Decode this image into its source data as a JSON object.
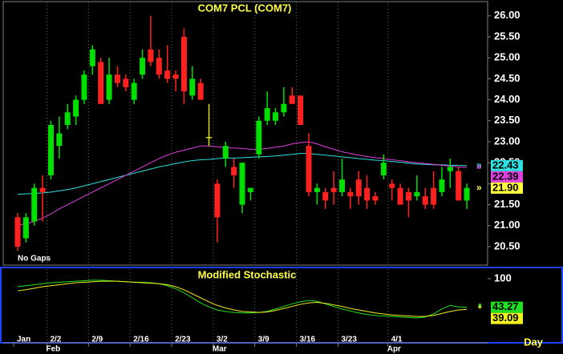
{
  "chart_data": [
    {
      "type": "candlestick",
      "title": "COM7 PCL (COM7)",
      "note": "No Gaps",
      "period": "Day",
      "xlim": [
        -1.35,
        56.5
      ],
      "xticks": [
        {
          "value": 0,
          "label": "Jan"
        },
        {
          "value": 4,
          "label": "2/2"
        },
        {
          "value": 9,
          "label": "2/9"
        },
        {
          "value": 14,
          "label": "2/16"
        },
        {
          "value": 19,
          "label": "2/23"
        },
        {
          "value": 24,
          "label": "3/2"
        },
        {
          "value": 29,
          "label": "3/9"
        },
        {
          "value": 34,
          "label": "3/16"
        },
        {
          "value": 39,
          "label": "3/23"
        },
        {
          "value": 45,
          "label": "4/1"
        }
      ],
      "month_ticks": [
        {
          "value": 4,
          "label": "Feb"
        },
        {
          "value": 24,
          "label": "Mar"
        },
        {
          "value": 45,
          "label": "Apr"
        }
      ],
      "ylim": [
        20.08,
        26.32
      ],
      "yticks": [
        {
          "value": 20.5,
          "label": "20.50"
        },
        {
          "value": 21,
          "label": "21.00"
        },
        {
          "value": 21.5,
          "label": "21.50"
        },
        {
          "value": 22,
          "label": "22.00"
        },
        {
          "value": 22.5,
          "label": "22.50"
        },
        {
          "value": 23,
          "label": "23.00"
        },
        {
          "value": 23.5,
          "label": "23.50"
        },
        {
          "value": 24,
          "label": "24.00"
        },
        {
          "value": 24.5,
          "label": "24.50"
        },
        {
          "value": 25,
          "label": "25.00"
        },
        {
          "value": 25.5,
          "label": "25.50"
        },
        {
          "value": 26,
          "label": "26.00"
        }
      ],
      "up_color": "#00e000",
      "down_color": "#ff2020",
      "doji_color": "#e0e000",
      "last_label_color": "#ffff40",
      "open": [
        21.2,
        20.7,
        21.1,
        21.9,
        22.2,
        22.9,
        23.4,
        23.6,
        24.0,
        24.8,
        24.9,
        24.0,
        24.6,
        24.5,
        24.0,
        24.6,
        25.2,
        25.0,
        24.7,
        24.6,
        25.5,
        24.1,
        24.4,
        23.1,
        22.0,
        22.6,
        22.4,
        21.5,
        21.8,
        22.7,
        23.5,
        23.5,
        23.7,
        24.1,
        24.1,
        22.9,
        21.8,
        21.8,
        21.9,
        21.8,
        21.8,
        22.1,
        21.9,
        21.7,
        22.2,
        22.0,
        21.9,
        21.8,
        21.7,
        21.7,
        21.9,
        21.8,
        22.3,
        22.3,
        21.6
      ],
      "high": [
        21.3,
        21.3,
        22.0,
        22.2,
        23.5,
        23.6,
        23.9,
        24.1,
        24.7,
        25.3,
        25.0,
        25.0,
        24.8,
        24.6,
        24.5,
        25.2,
        26.0,
        25.2,
        25.3,
        24.7,
        25.7,
        24.8,
        24.5,
        23.9,
        22.1,
        23.0,
        22.6,
        22.5,
        21.9,
        23.6,
        24.2,
        23.8,
        24.3,
        24.3,
        24.1,
        23.2,
        22.0,
        21.9,
        22.3,
        22.6,
        21.9,
        22.3,
        22.2,
        21.8,
        22.7,
        22.1,
        22.0,
        21.9,
        22.2,
        21.9,
        22.3,
        22.4,
        22.6,
        22.4,
        22.0
      ],
      "low": [
        20.4,
        20.6,
        21.0,
        21.1,
        22.1,
        22.6,
        23.3,
        23.4,
        23.9,
        24.6,
        23.9,
        23.9,
        24.3,
        24.2,
        23.9,
        24.5,
        24.8,
        24.5,
        24.4,
        24.2,
        23.9,
        24.0,
        24.0,
        22.9,
        20.6,
        22.4,
        21.9,
        21.3,
        21.6,
        22.6,
        23.4,
        23.4,
        23.6,
        23.9,
        23.4,
        21.7,
        21.5,
        21.4,
        21.5,
        21.7,
        21.4,
        21.5,
        21.4,
        21.5,
        22.1,
        21.6,
        21.5,
        21.2,
        21.6,
        21.4,
        21.4,
        21.7,
        21.9,
        21.6,
        21.4
      ],
      "close": [
        20.5,
        21.2,
        21.9,
        21.8,
        23.4,
        23.2,
        23.7,
        24.0,
        24.6,
        25.2,
        23.9,
        24.6,
        24.4,
        24.3,
        24.4,
        25.0,
        24.9,
        24.6,
        24.5,
        24.5,
        24.2,
        24.5,
        24.0,
        23.1,
        21.2,
        22.9,
        22.2,
        22.5,
        21.9,
        23.5,
        23.8,
        23.7,
        23.9,
        23.9,
        23.4,
        21.8,
        21.9,
        21.6,
        21.8,
        22.1,
        21.7,
        21.7,
        21.6,
        21.6,
        22.5,
        21.9,
        21.5,
        21.6,
        21.8,
        21.5,
        21.5,
        22.1,
        22.4,
        21.6,
        21.9
      ],
      "last_label": "21.90",
      "series": [
        {
          "color": "#30e0e0",
          "last_label": "22.43",
          "values": [
            21.75,
            21.76,
            21.77,
            21.78,
            21.8,
            21.83,
            21.86,
            21.9,
            21.95,
            22.0,
            22.05,
            22.1,
            22.15,
            22.2,
            22.25,
            22.3,
            22.35,
            22.4,
            22.44,
            22.48,
            22.52,
            22.55,
            22.57,
            22.58,
            22.6,
            22.61,
            22.61,
            22.62,
            22.63,
            22.64,
            22.65,
            22.66,
            22.68,
            22.7,
            22.72,
            22.72,
            22.7,
            22.68,
            22.66,
            22.64,
            22.62,
            22.6,
            22.58,
            22.56,
            22.55,
            22.53,
            22.51,
            22.49,
            22.47,
            22.46,
            22.45,
            22.45,
            22.44,
            22.44,
            22.43
          ]
        },
        {
          "color": "#e040e0",
          "last_label": "22.39",
          "values": [
            21.0,
            21.05,
            21.1,
            21.18,
            21.28,
            21.4,
            21.5,
            21.6,
            21.7,
            21.8,
            21.9,
            22.0,
            22.1,
            22.2,
            22.3,
            22.4,
            22.5,
            22.6,
            22.68,
            22.75,
            22.8,
            22.85,
            22.9,
            22.9,
            22.88,
            22.86,
            22.85,
            22.84,
            22.82,
            22.82,
            22.84,
            22.87,
            22.9,
            22.95,
            22.98,
            23.0,
            22.95,
            22.88,
            22.82,
            22.76,
            22.72,
            22.68,
            22.65,
            22.62,
            22.6,
            22.57,
            22.55,
            22.52,
            22.5,
            22.48,
            22.46,
            22.44,
            22.42,
            22.4,
            22.39
          ]
        }
      ]
    },
    {
      "type": "line",
      "title": "Modified Stochastic",
      "xlim": [
        -1.35,
        56.5
      ],
      "ylim": [
        -24,
        119
      ],
      "yticks": [
        100
      ],
      "series": [
        {
          "color": "#20e020",
          "last_label": "43.27",
          "values": [
            84,
            86,
            88,
            90,
            92,
            93,
            94,
            95,
            96,
            97,
            97,
            96,
            95,
            94,
            93,
            93,
            92,
            90,
            86,
            80,
            72,
            62,
            52,
            44,
            38,
            35,
            33,
            32,
            32,
            33,
            35,
            40,
            45,
            50,
            54,
            57,
            55,
            50,
            45,
            40,
            36,
            32,
            29,
            27,
            26,
            25,
            24,
            23,
            22,
            24,
            30,
            40,
            47,
            44,
            43.27
          ]
        },
        {
          "color": "#f0f020",
          "last_label": "39.09",
          "values": [
            76,
            78,
            81,
            84,
            86,
            88,
            90,
            92,
            93,
            94,
            95,
            95,
            95,
            94,
            93,
            92,
            91,
            90,
            88,
            84,
            78,
            70,
            62,
            54,
            47,
            42,
            38,
            35,
            34,
            33,
            34,
            37,
            41,
            45,
            49,
            52,
            53,
            51,
            48,
            45,
            41,
            38,
            35,
            32,
            30,
            28,
            27,
            26,
            25,
            25,
            27,
            31,
            35,
            38,
            39.09
          ]
        }
      ]
    }
  ]
}
